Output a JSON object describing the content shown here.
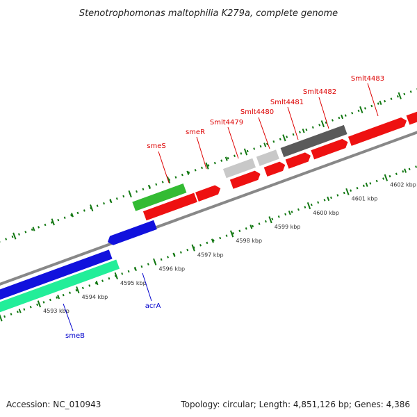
{
  "title": "Stenotrophomonas maltophilia K279a, complete genome",
  "footer": {
    "accession": "Accession: NC_010943",
    "summary": "Topology: circular; Length: 4,851,126 bp; Genes: 4,386"
  },
  "colors": {
    "red_cds": "#ee1111",
    "blue_cds": "#1111dd",
    "green_cds": "#33bb33",
    "teal_cds": "#22ee99",
    "light_gray_cds": "#c8c8c8",
    "dark_gray_cds": "#5a5a5a",
    "backbone": "#888888",
    "tick": "#117711",
    "red_label": "#dd0000",
    "blue_label": "#0000cc"
  },
  "scale_labels": [
    "4593 kbp",
    "4594 kbp",
    "4595 kbp",
    "4596 kbp",
    "4597 kbp",
    "4598 kbp",
    "4599 kbp",
    "4600 kbp",
    "4601 kbp",
    "4602 kbp"
  ],
  "gene_labels": {
    "smeS": "smeS",
    "smeR": "smeR",
    "smlt4479": "Smlt4479",
    "smlt4480": "Smlt4480",
    "smlt4481": "Smlt4481",
    "smlt4482": "Smlt4482",
    "smlt4483": "Smlt4483",
    "acrA": "acrA",
    "smeB": "smeB"
  }
}
